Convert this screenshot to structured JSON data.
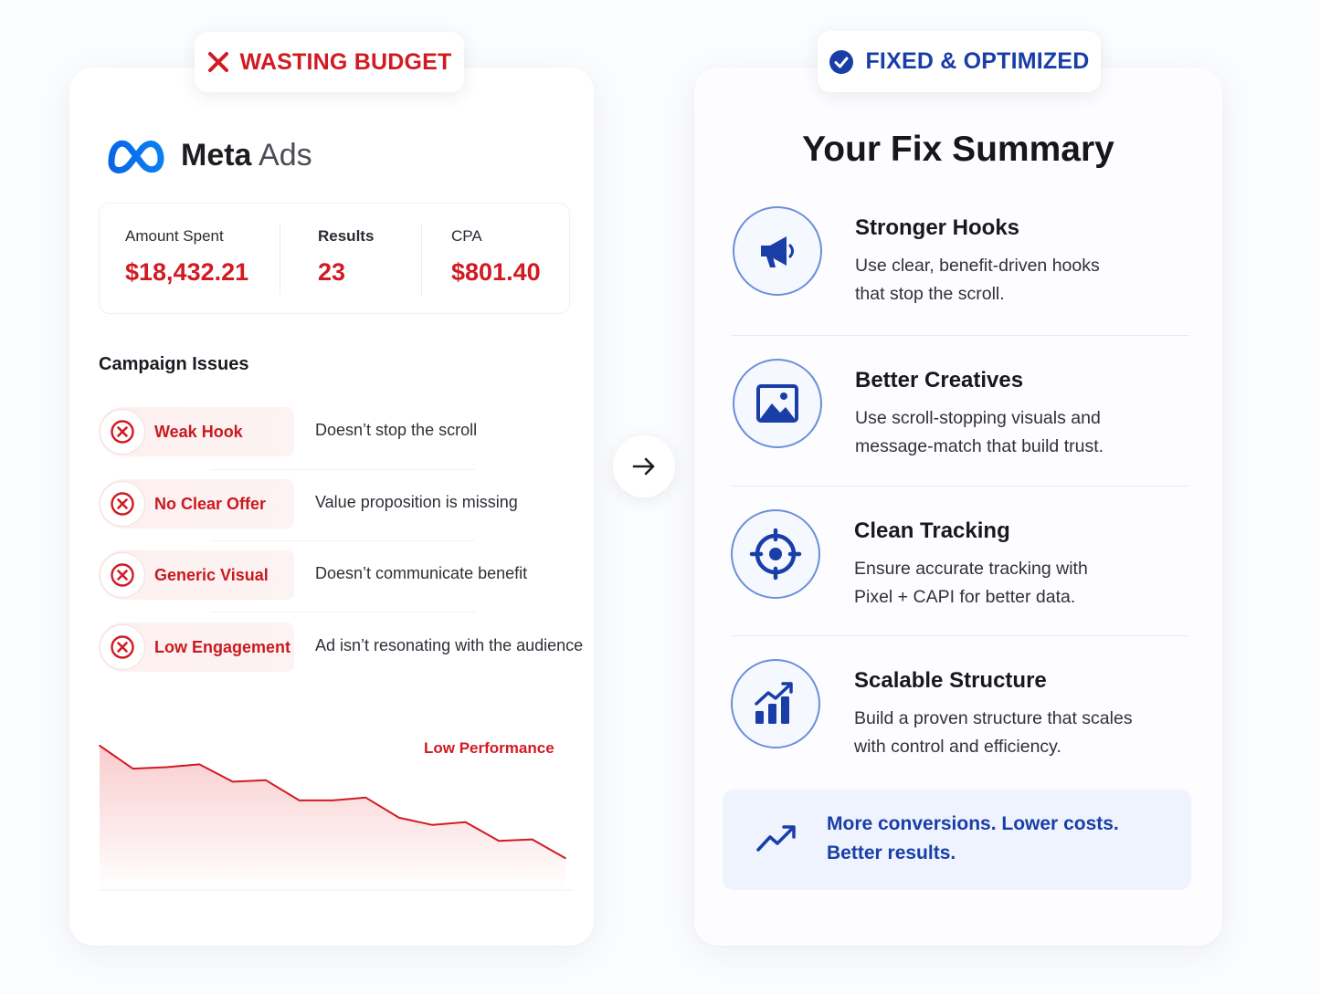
{
  "left_badge": {
    "label": "WASTING BUDGET",
    "color": "#d11a22"
  },
  "right_badge": {
    "label": "FIXED & OPTIMIZED",
    "color": "#1a3ea8"
  },
  "brand": {
    "name_bold": "Meta",
    "name_light": "Ads",
    "logo_icon": "meta-infinity-logo"
  },
  "stats": [
    {
      "label": "Amount Spent",
      "value": "$18,432.21"
    },
    {
      "label": "Results",
      "value": "23"
    },
    {
      "label": "CPA",
      "value": "$801.40"
    }
  ],
  "issues_title": "Campaign Issues",
  "issues": [
    {
      "name": "Weak Hook",
      "desc": "Doesn’t stop the scroll"
    },
    {
      "name": "No Clear Offer",
      "desc": "Value proposition is missing"
    },
    {
      "name": "Generic Visual",
      "desc": "Doesn’t communicate benefit"
    },
    {
      "name": "Low Engagement",
      "desc": "Ad isn’t resonating with the audience"
    }
  ],
  "chart_data": {
    "type": "line",
    "title": "",
    "annotations": [
      "Low Performance"
    ],
    "x": [
      0,
      1,
      2,
      3,
      4,
      5,
      6,
      7,
      8,
      9,
      10,
      11,
      12,
      13,
      14
    ],
    "values": [
      100,
      84,
      85,
      87,
      75,
      76,
      62,
      62,
      64,
      50,
      45,
      47,
      34,
      35,
      22
    ],
    "ylim": [
      0,
      110
    ],
    "grid": false,
    "color": "#d11a22"
  },
  "fix_title": "Your Fix Summary",
  "fixes": [
    {
      "title": "Stronger Hooks",
      "line1": "Use clear, benefit-driven hooks",
      "line2": "that stop the scroll.",
      "icon": "megaphone-icon"
    },
    {
      "title": "Better Creatives",
      "line1": "Use scroll-stopping visuals and",
      "line2": "message-match that build trust.",
      "icon": "image-icon"
    },
    {
      "title": "Clean Tracking",
      "line1": "Ensure accurate tracking with",
      "line2": "Pixel + CAPI for better data.",
      "icon": "crosshair-icon"
    },
    {
      "title": "Scalable Structure",
      "line1": "Build a proven structure that scales",
      "line2": "with control and efficiency.",
      "icon": "growth-chart-icon"
    }
  ],
  "result": {
    "line1": "More conversions. Lower costs.",
    "line2": "Better results.",
    "icon": "trend-up-icon"
  },
  "colors": {
    "bad": "#d11a22",
    "good": "#1a3ea8",
    "icon_blue": "#1a3ea8"
  }
}
